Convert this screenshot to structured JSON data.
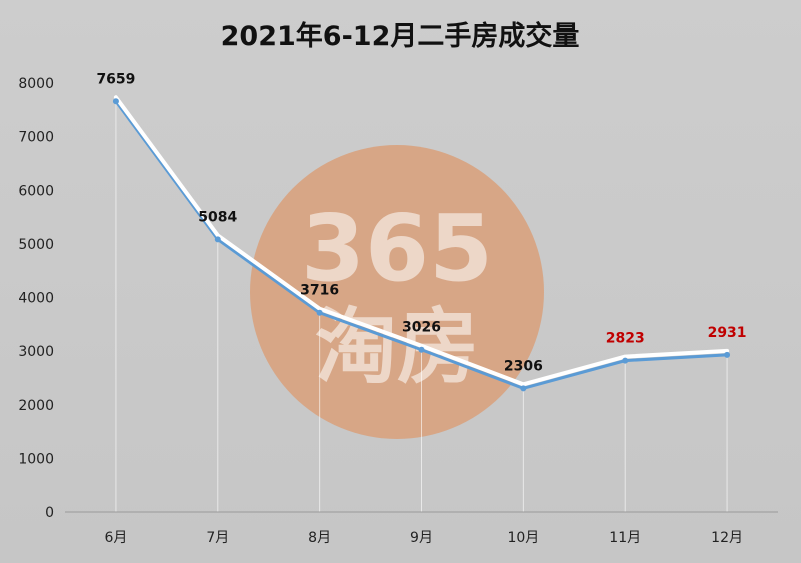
{
  "chart_data": {
    "type": "line",
    "title": "2021年6-12月二手房成交量",
    "categories": [
      "6月",
      "7月",
      "8月",
      "9月",
      "10月",
      "11月",
      "12月"
    ],
    "series": [
      {
        "values": [
          7659,
          5084,
          3716,
          3026,
          2306,
          2823,
          2931
        ]
      }
    ],
    "data_labels": [
      "7659",
      "5084",
      "3716",
      "3026",
      "2306",
      "2823",
      "2931"
    ],
    "ylim": [
      0,
      8000
    ],
    "yticks": [
      0,
      1000,
      2000,
      3000,
      4000,
      5000,
      6000,
      7000,
      8000
    ],
    "xlabel": "",
    "ylabel": "",
    "grid": false,
    "legend": "none",
    "colors": {
      "line": "#5b9bd5",
      "line_highlight": "#ffffff",
      "label_default": "#111111",
      "label_highlight": "#c00000",
      "background": "#c9c9c9"
    }
  },
  "watermark": {
    "line1": "365",
    "line2": "淘房",
    "color": "#d9a07a"
  }
}
